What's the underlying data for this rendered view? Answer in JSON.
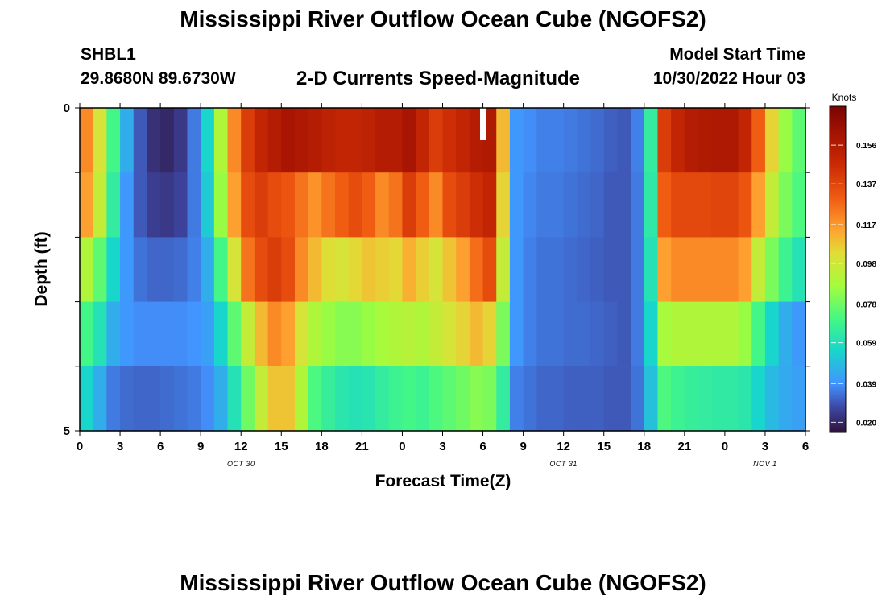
{
  "titles": {
    "main": "Mississippi River Outflow Ocean Cube (NGOFS2)",
    "main_repeat": "Mississippi River Outflow Ocean Cube (NGOFS2)"
  },
  "station": {
    "id": "SHBL1",
    "coords": "29.8680N  89.6730W"
  },
  "plot_title": "2-D Currents Speed-Magnitude",
  "model_start": {
    "label": "Model Start Time",
    "value": "10/30/2022 Hour 03"
  },
  "chart_data": {
    "type": "heatmap",
    "title": "2-D Currents Speed-Magnitude",
    "xlabel": "Forecast Time(Z)",
    "ylabel": "Depth (ft)",
    "x_tick_labels": [
      "0",
      "3",
      "6",
      "9",
      "12",
      "15",
      "18",
      "21",
      "0",
      "3",
      "6",
      "9",
      "12",
      "15",
      "18",
      "21",
      "0",
      "3",
      "6"
    ],
    "x_range_hours": [
      0,
      54
    ],
    "date_labels": [
      {
        "text": "OCT 30",
        "hour": 12
      },
      {
        "text": "OCT 31",
        "hour": 36
      },
      {
        "text": "NOV 1",
        "hour": 51
      }
    ],
    "y_tick_labels": [
      "0",
      "5"
    ],
    "y_range_ft": [
      0,
      5
    ],
    "depth_levels": 5,
    "colorbar": {
      "title": "Knots",
      "range": [
        0.015,
        0.175
      ],
      "tick_labels": [
        "0.156",
        "0.137",
        "0.117",
        "0.098",
        "0.078",
        "0.059",
        "0.039",
        "0.020"
      ],
      "tick_values": [
        0.156,
        0.137,
        0.117,
        0.098,
        0.078,
        0.059,
        0.039,
        0.02
      ]
    },
    "hours": [
      0,
      1,
      2,
      3,
      4,
      5,
      6,
      7,
      8,
      9,
      10,
      11,
      12,
      13,
      14,
      15,
      16,
      17,
      18,
      19,
      20,
      21,
      22,
      23,
      24,
      25,
      26,
      27,
      28,
      29,
      30,
      31,
      32,
      33,
      34,
      35,
      36,
      37,
      38,
      39,
      40,
      41,
      42,
      43,
      44,
      45,
      46,
      47,
      48,
      49,
      50,
      51,
      52,
      53
    ],
    "speed_knots": [
      [
        0.12,
        0.1,
        0.07,
        0.045,
        0.03,
        0.022,
        0.02,
        0.024,
        0.035,
        0.055,
        0.09,
        0.12,
        0.14,
        0.15,
        0.155,
        0.16,
        0.158,
        0.155,
        0.152,
        0.15,
        0.15,
        0.152,
        0.155,
        0.155,
        0.16,
        0.15,
        0.14,
        0.145,
        0.15,
        0.155,
        0.157,
        0.11,
        0.04,
        0.038,
        0.036,
        0.036,
        0.035,
        0.034,
        0.033,
        0.031,
        0.03,
        0.036,
        0.065,
        0.14,
        0.15,
        0.155,
        0.157,
        0.158,
        0.158,
        0.15,
        0.13,
        0.105,
        0.085,
        0.075
      ],
      [
        0.115,
        0.095,
        0.065,
        0.04,
        0.03,
        0.025,
        0.024,
        0.026,
        0.035,
        0.052,
        0.085,
        0.115,
        0.135,
        0.14,
        0.135,
        0.132,
        0.125,
        0.118,
        0.125,
        0.13,
        0.135,
        0.13,
        0.12,
        0.125,
        0.14,
        0.13,
        0.12,
        0.135,
        0.14,
        0.145,
        0.15,
        0.105,
        0.04,
        0.037,
        0.035,
        0.035,
        0.034,
        0.033,
        0.032,
        0.03,
        0.03,
        0.035,
        0.063,
        0.13,
        0.136,
        0.136,
        0.136,
        0.137,
        0.137,
        0.132,
        0.115,
        0.095,
        0.08,
        0.072
      ],
      [
        0.09,
        0.075,
        0.055,
        0.04,
        0.034,
        0.032,
        0.032,
        0.033,
        0.036,
        0.045,
        0.07,
        0.1,
        0.125,
        0.135,
        0.14,
        0.135,
        0.12,
        0.11,
        0.102,
        0.1,
        0.104,
        0.108,
        0.106,
        0.104,
        0.112,
        0.106,
        0.1,
        0.108,
        0.115,
        0.126,
        0.135,
        0.095,
        0.04,
        0.036,
        0.034,
        0.034,
        0.033,
        0.032,
        0.031,
        0.03,
        0.03,
        0.035,
        0.06,
        0.115,
        0.12,
        0.12,
        0.12,
        0.12,
        0.12,
        0.115,
        0.095,
        0.08,
        0.068,
        0.06
      ],
      [
        0.07,
        0.06,
        0.045,
        0.04,
        0.038,
        0.038,
        0.038,
        0.038,
        0.039,
        0.042,
        0.055,
        0.075,
        0.095,
        0.11,
        0.12,
        0.115,
        0.1,
        0.09,
        0.085,
        0.082,
        0.082,
        0.085,
        0.088,
        0.09,
        0.092,
        0.09,
        0.095,
        0.1,
        0.105,
        0.11,
        0.105,
        0.08,
        0.04,
        0.036,
        0.034,
        0.034,
        0.033,
        0.033,
        0.032,
        0.031,
        0.03,
        0.035,
        0.055,
        0.088,
        0.09,
        0.09,
        0.09,
        0.09,
        0.09,
        0.085,
        0.07,
        0.055,
        0.045,
        0.04
      ],
      [
        0.055,
        0.045,
        0.035,
        0.033,
        0.032,
        0.032,
        0.033,
        0.034,
        0.035,
        0.038,
        0.045,
        0.06,
        0.078,
        0.095,
        0.108,
        0.108,
        0.09,
        0.072,
        0.066,
        0.062,
        0.06,
        0.061,
        0.065,
        0.068,
        0.07,
        0.068,
        0.072,
        0.075,
        0.078,
        0.082,
        0.08,
        0.065,
        0.036,
        0.034,
        0.032,
        0.032,
        0.031,
        0.031,
        0.031,
        0.03,
        0.03,
        0.034,
        0.05,
        0.072,
        0.068,
        0.066,
        0.065,
        0.064,
        0.064,
        0.062,
        0.055,
        0.048,
        0.044,
        0.042
      ]
    ]
  }
}
